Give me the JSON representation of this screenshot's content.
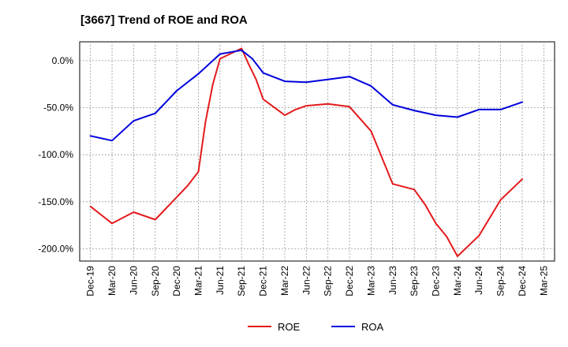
{
  "chart_data": {
    "type": "line",
    "title": "[3667]  Trend of ROE and ROA",
    "xlabel": "",
    "ylabel": "",
    "x": [
      "Dec-19",
      "Mar-20",
      "Jun-20",
      "Sep-20",
      "Dec-20",
      "Mar-21",
      "Jun-21",
      "Sep-21",
      "Dec-21",
      "Mar-22",
      "Jun-22",
      "Sep-22",
      "Dec-22",
      "Mar-23",
      "Jun-23",
      "Sep-23",
      "Dec-23",
      "Mar-24",
      "Jun-24",
      "Sep-24",
      "Dec-24",
      "Mar-25"
    ],
    "ylim": [
      -213,
      20
    ],
    "yticks": [
      0,
      -50,
      -100,
      -150,
      -200
    ],
    "ytick_labels": [
      "0.0%",
      "-50.0%",
      "-100.0%",
      "-150.0%",
      "-200.0%"
    ],
    "grid": true,
    "legend_position": "bottom",
    "series": [
      {
        "name": "ROE",
        "color": "#e41a1c",
        "points": [
          {
            "x": 0,
            "y": -155
          },
          {
            "x": 1,
            "y": -173
          },
          {
            "x": 2,
            "y": -161
          },
          {
            "x": 3,
            "y": -169
          },
          {
            "x": 4,
            "y": -145
          },
          {
            "x": 4.5,
            "y": -133
          },
          {
            "x": 5,
            "y": -118
          },
          {
            "x": 5.33,
            "y": -65
          },
          {
            "x": 5.67,
            "y": -25
          },
          {
            "x": 6,
            "y": 2
          },
          {
            "x": 7,
            "y": 13
          },
          {
            "x": 7.33,
            "y": -4
          },
          {
            "x": 7.67,
            "y": -20
          },
          {
            "x": 8,
            "y": -41
          },
          {
            "x": 9,
            "y": -58
          },
          {
            "x": 9.5,
            "y": -52
          },
          {
            "x": 10,
            "y": -48
          },
          {
            "x": 11,
            "y": -46
          },
          {
            "x": 12,
            "y": -49
          },
          {
            "x": 13,
            "y": -75
          },
          {
            "x": 14,
            "y": -131
          },
          {
            "x": 15,
            "y": -137
          },
          {
            "x": 15.5,
            "y": -153
          },
          {
            "x": 16,
            "y": -173
          },
          {
            "x": 16.5,
            "y": -187
          },
          {
            "x": 17,
            "y": -208
          },
          {
            "x": 18,
            "y": -186
          },
          {
            "x": 18.5,
            "y": -167
          },
          {
            "x": 19,
            "y": -148
          },
          {
            "x": 20,
            "y": -126
          }
        ]
      },
      {
        "name": "ROA",
        "color": "#0000dd",
        "points": [
          {
            "x": 0,
            "y": -80
          },
          {
            "x": 1,
            "y": -85
          },
          {
            "x": 2,
            "y": -64
          },
          {
            "x": 3,
            "y": -56
          },
          {
            "x": 4,
            "y": -32
          },
          {
            "x": 5,
            "y": -14
          },
          {
            "x": 6,
            "y": 7
          },
          {
            "x": 7,
            "y": 11
          },
          {
            "x": 7.5,
            "y": 2
          },
          {
            "x": 8,
            "y": -13
          },
          {
            "x": 9,
            "y": -22
          },
          {
            "x": 10,
            "y": -23
          },
          {
            "x": 11,
            "y": -20
          },
          {
            "x": 12,
            "y": -17
          },
          {
            "x": 13,
            "y": -27
          },
          {
            "x": 14,
            "y": -47
          },
          {
            "x": 15,
            "y": -53
          },
          {
            "x": 16,
            "y": -58
          },
          {
            "x": 17,
            "y": -60
          },
          {
            "x": 18,
            "y": -52
          },
          {
            "x": 19,
            "y": -52
          },
          {
            "x": 20,
            "y": -44
          }
        ]
      }
    ]
  }
}
